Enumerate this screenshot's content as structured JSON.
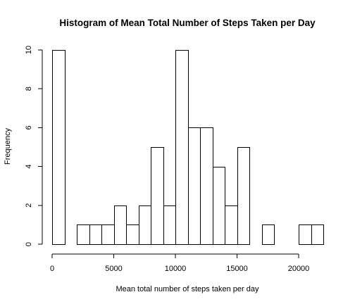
{
  "chart_data": {
    "type": "bar",
    "title": "Histogram of Mean Total Number of Steps Taken per Day",
    "xlabel": "Mean total number of steps taken per day",
    "ylabel": "Frequency",
    "bin_edges": [
      0,
      1000,
      2000,
      3000,
      4000,
      5000,
      6000,
      7000,
      8000,
      9000,
      10000,
      11000,
      12000,
      13000,
      14000,
      15000,
      16000,
      17000,
      18000,
      19000,
      20000,
      21000,
      22000
    ],
    "values": [
      10,
      0,
      1,
      1,
      1,
      2,
      1,
      2,
      5,
      2,
      10,
      6,
      6,
      4,
      2,
      5,
      0,
      1,
      0,
      0,
      1,
      1
    ],
    "xlim": [
      0,
      22000
    ],
    "ylim": [
      0,
      10
    ],
    "x_ticks": [
      0,
      5000,
      10000,
      15000,
      20000
    ],
    "y_ticks": [
      0,
      2,
      4,
      6,
      8,
      10
    ],
    "grid": false,
    "legend": "none"
  }
}
